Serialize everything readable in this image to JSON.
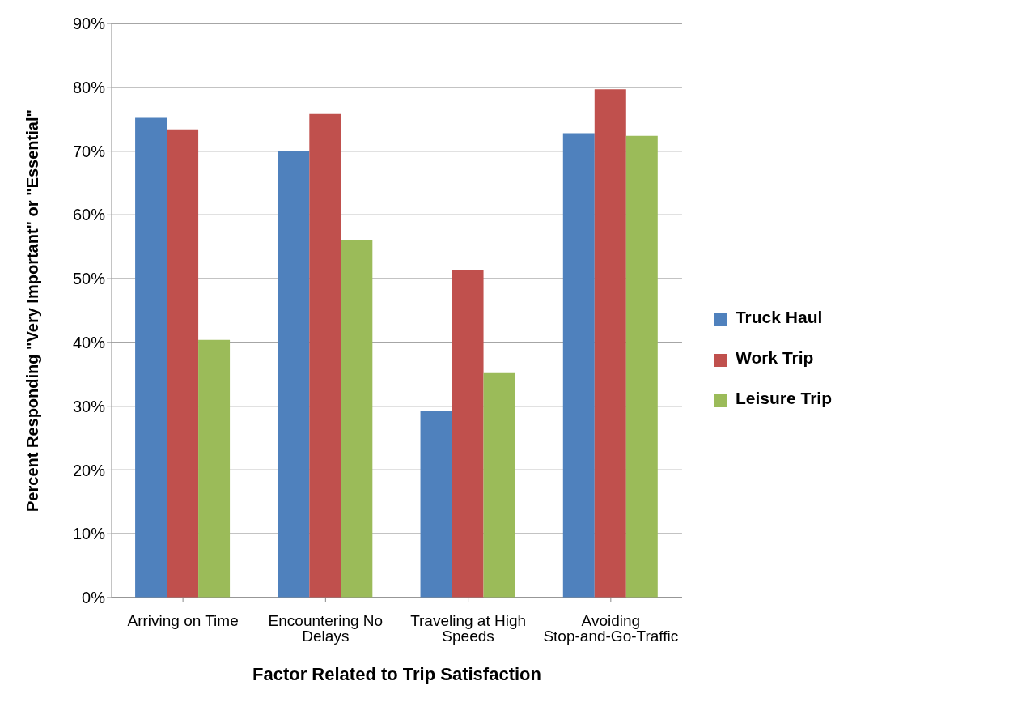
{
  "chart_data": {
    "type": "bar",
    "xlabel": "Factor Related to Trip Satisfaction",
    "ylabel": "Percent Responding \"Very Important\" or \"Essential\"",
    "categories": [
      "Arriving on Time",
      "Encountering No Delays",
      "Traveling at High Speeds",
      "Avoiding Stop-and-Go-Traffic"
    ],
    "series": [
      {
        "name": "Truck Haul",
        "color": "#4f81bd",
        "values": [
          75.2,
          70.0,
          29.2,
          72.8
        ]
      },
      {
        "name": "Work Trip",
        "color": "#c0504d",
        "values": [
          73.4,
          75.8,
          51.3,
          79.7
        ]
      },
      {
        "name": "Leisure Trip",
        "color": "#9bbb59",
        "values": [
          40.4,
          56.0,
          35.2,
          72.4
        ]
      }
    ],
    "ylim": [
      0,
      90
    ],
    "yticks": [
      {
        "value": 0,
        "label": "0%"
      },
      {
        "value": 10,
        "label": "10%"
      },
      {
        "value": 20,
        "label": "20%"
      },
      {
        "value": 30,
        "label": "30%"
      },
      {
        "value": 40,
        "label": "40%"
      },
      {
        "value": 50,
        "label": "50%"
      },
      {
        "value": 60,
        "label": "60%"
      },
      {
        "value": 70,
        "label": "70%"
      },
      {
        "value": 80,
        "label": "80%"
      },
      {
        "value": 90,
        "label": "90%"
      }
    ],
    "grid": "y",
    "legend": "right"
  }
}
